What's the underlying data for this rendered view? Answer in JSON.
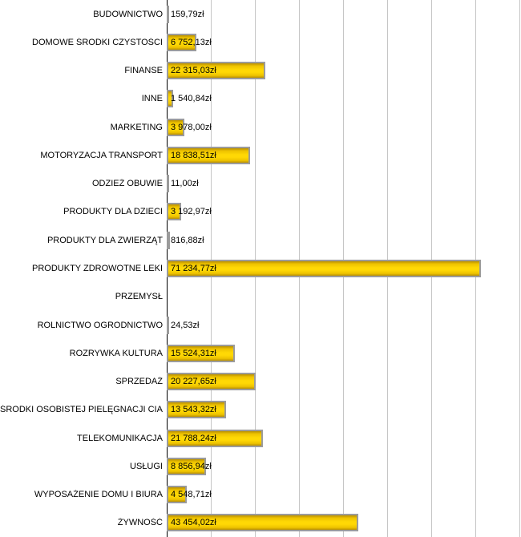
{
  "chart_data": {
    "type": "bar",
    "orientation": "horizontal",
    "title": "",
    "xlabel": "",
    "ylabel": "",
    "currency": "zł",
    "grid": true,
    "legend": false,
    "xlim": [
      0,
      80000
    ],
    "grid_step": 10000,
    "categories": [
      "BUDOWNICTWO",
      "DOMOWE ŚRODKI CZYSTOŚCI",
      "FINANSE",
      "INNE",
      "MARKETING",
      "MOTORYZACJA TRANSPORT",
      "ODZIEŻ OBUWIE",
      "PRODUKTY DLA DZIECI",
      "PRODUKTY DLA ZWIERZĄT",
      "PRODUKTY ZDROWOTNE LEKI",
      "PRZEMYSŁ",
      "ROLNICTWO OGRODNICTWO",
      "ROZRYWKA KULTURA",
      "SPRZEDAŻ",
      "ŚRODKI OSOBISTEJ PIELĘGNACJI CIAŁA",
      "TELEKOMUNIKACJA",
      "USŁUGI",
      "WYPOSAŻENIE DOMU I BIURA",
      "ŻYWNOŚĆ"
    ],
    "values": [
      159.79,
      6752.13,
      22315.03,
      1540.84,
      3978.0,
      18838.51,
      11.0,
      3192.97,
      816.88,
      71234.77,
      null,
      24.53,
      15524.31,
      20227.65,
      13543.32,
      21788.24,
      8856.94,
      4548.71,
      43454.02
    ],
    "value_labels": [
      "159,79zł",
      "6 752,13zł",
      "22 315,03zł",
      "1 540,84zł",
      "3 978,00zł",
      "18 838,51zł",
      "11,00zł",
      "3 192,97zł",
      "816,88zł",
      "71 234,77zł",
      "",
      "24,53zł",
      "15 524,31zł",
      "20 227,65zł",
      "13 543,32zł",
      "21 788,24zł",
      "8 856,94zł",
      "4 548,71zł",
      "43 454,02zł"
    ],
    "colors": {
      "bar_gradient_edge": "#b98f00",
      "bar_gradient_mid1": "#edc200",
      "bar_gradient_bright": "#ffd805",
      "bar_border": "#9b9b9b",
      "gridline": "#c6c6c6",
      "axis": "#000000",
      "text": "#000000",
      "background": "#ffffff"
    }
  }
}
